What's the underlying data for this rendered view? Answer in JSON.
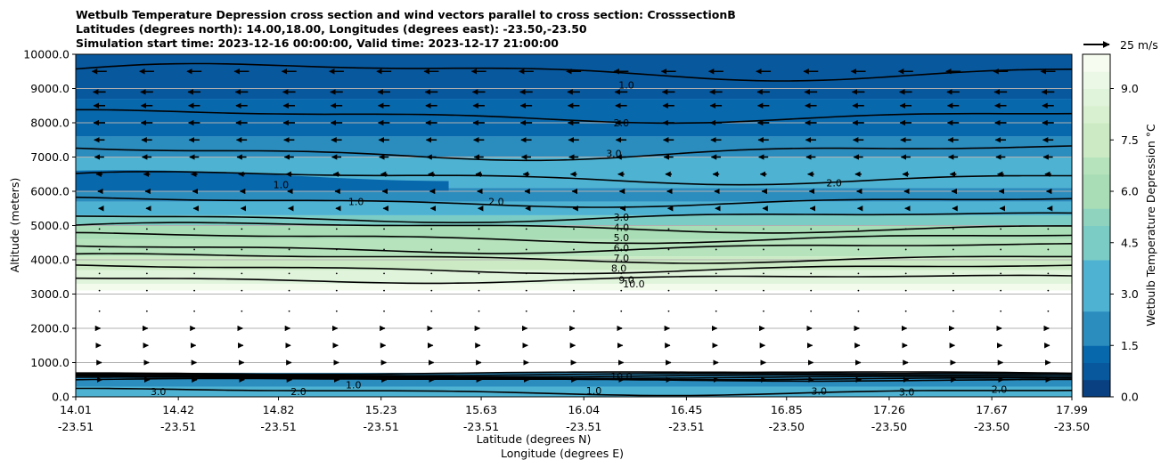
{
  "chart_data": {
    "type": "heatmap",
    "title_lines": [
      "Wetbulb Temperature Depression cross section and wind vectors parallel to cross section: CrosssectionB",
      "Latitudes (degrees north): 14.00,18.00, Longitudes (degrees east): -23.50,-23.50",
      "Simulation start time: 2023-12-16 00:00:00, Valid time: 2023-12-17 21:00:00"
    ],
    "xlabel": "Latitude (degrees N)",
    "xlabel2": "Longitude (degrees E)",
    "ylabel": "Altitude (meters)",
    "xlim": [
      14.01,
      17.99
    ],
    "ylim": [
      0,
      10000
    ],
    "x_ticks": [
      {
        "lat": "14.01",
        "lon": "-23.51",
        "v": 14.01
      },
      {
        "lat": "14.42",
        "lon": "-23.51",
        "v": 14.42
      },
      {
        "lat": "14.82",
        "lon": "-23.51",
        "v": 14.82
      },
      {
        "lat": "15.23",
        "lon": "-23.51",
        "v": 15.23
      },
      {
        "lat": "15.63",
        "lon": "-23.51",
        "v": 15.63
      },
      {
        "lat": "16.04",
        "lon": "-23.51",
        "v": 16.04
      },
      {
        "lat": "16.45",
        "lon": "-23.51",
        "v": 16.45
      },
      {
        "lat": "16.85",
        "lon": "-23.50",
        "v": 16.85
      },
      {
        "lat": "17.26",
        "lon": "-23.50",
        "v": 17.26
      },
      {
        "lat": "17.67",
        "lon": "-23.50",
        "v": 17.67
      },
      {
        "lat": "17.99",
        "lon": "-23.50",
        "v": 17.99
      }
    ],
    "y_ticks": [
      0,
      1000,
      2000,
      3000,
      4000,
      5000,
      6000,
      7000,
      8000,
      9000,
      10000
    ],
    "y_tick_labels": [
      "0.0",
      "1000.0",
      "2000.0",
      "3000.0",
      "4000.0",
      "5000.0",
      "6000.0",
      "7000.0",
      "8000.0",
      "9000.0",
      "10000.0"
    ],
    "colorbar": {
      "label": "Wetbulb Temperature Depression °C",
      "min": 0,
      "max": 10,
      "ticks": [
        0.0,
        1.5,
        3.0,
        4.5,
        6.0,
        7.5,
        9.0
      ],
      "tick_labels": [
        "0.0",
        "1.5",
        "3.0",
        "4.5",
        "6.0",
        "7.5",
        "9.0"
      ],
      "levels": 20
    },
    "wind_key": {
      "label": "25 m/s",
      "speed": 25
    },
    "contour_labels": [
      {
        "text": "1.0",
        "x": 16.21,
        "y": 9100
      },
      {
        "text": "2.0",
        "x": 16.19,
        "y": 8000
      },
      {
        "text": "3.0",
        "x": 16.16,
        "y": 7100
      },
      {
        "text": "3.0",
        "x": 16.19,
        "y": 5250
      },
      {
        "text": "4.0",
        "x": 16.19,
        "y": 4950
      },
      {
        "text": "5.0",
        "x": 16.19,
        "y": 4650
      },
      {
        "text": "6.0",
        "x": 16.19,
        "y": 4350
      },
      {
        "text": "7.0",
        "x": 16.19,
        "y": 4050
      },
      {
        "text": "8.0",
        "x": 16.18,
        "y": 3750
      },
      {
        "text": "9.0",
        "x": 16.21,
        "y": 3420
      },
      {
        "text": "10.0",
        "x": 16.24,
        "y": 3300
      },
      {
        "text": "1.0",
        "x": 14.83,
        "y": 6200
      },
      {
        "text": "1.0",
        "x": 15.13,
        "y": 5700
      },
      {
        "text": "2.0",
        "x": 15.69,
        "y": 5700
      },
      {
        "text": "2.0",
        "x": 17.04,
        "y": 6250
      },
      {
        "text": "10.0",
        "x": 16.19,
        "y": 600
      },
      {
        "text": "3.0",
        "x": 14.34,
        "y": 150
      },
      {
        "text": "2.0",
        "x": 14.9,
        "y": 150
      },
      {
        "text": "1.0",
        "x": 15.12,
        "y": 350
      },
      {
        "text": "1.0",
        "x": 16.08,
        "y": 180
      },
      {
        "text": "3.0",
        "x": 16.98,
        "y": 170
      },
      {
        "text": "3.0",
        "x": 17.33,
        "y": 140
      },
      {
        "text": "2.0",
        "x": 17.7,
        "y": 220
      }
    ],
    "wind_rows": [
      {
        "z": 9500,
        "u": -14
      },
      {
        "z": 8900,
        "u": -12
      },
      {
        "z": 8500,
        "u": -11
      },
      {
        "z": 8000,
        "u": -11
      },
      {
        "z": 7500,
        "u": -10
      },
      {
        "z": 7000,
        "u": -9
      },
      {
        "z": 6500,
        "u": -6
      },
      {
        "z": 6000,
        "u": -3
      },
      {
        "z": 5500,
        "u": -1.5
      },
      {
        "z": 4900,
        "u": -0.6
      },
      {
        "z": 4300,
        "u": -0.4
      },
      {
        "z": 3600,
        "u": -0.3
      },
      {
        "z": 3100,
        "u": 0.3
      },
      {
        "z": 2500,
        "u": 0.6
      },
      {
        "z": 2000,
        "u": 1.5
      },
      {
        "z": 1500,
        "u": 2.5
      },
      {
        "z": 1000,
        "u": 4
      },
      {
        "z": 500,
        "u": 5
      }
    ]
  }
}
